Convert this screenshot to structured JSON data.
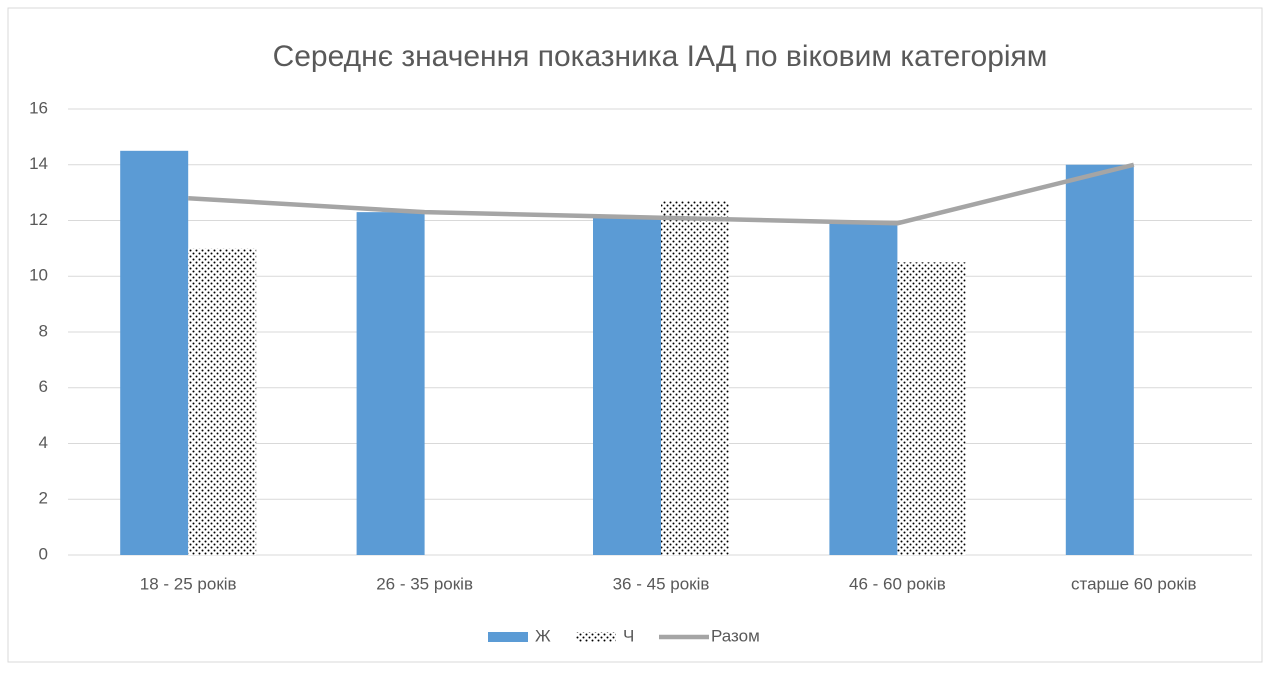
{
  "chart_data": {
    "type": "bar",
    "title": "Середнє значення показника ІАД по віковим категоріям",
    "categories": [
      "18 - 25 років",
      "26 - 35 років",
      "36 - 45 років",
      "46 - 60 років",
      "старше 60 років"
    ],
    "series": [
      {
        "name": "Ж",
        "color": "#5b9bd5",
        "values": [
          14.5,
          12.3,
          12.1,
          11.9,
          14.0
        ]
      },
      {
        "name": "Ч",
        "color": "#000000",
        "pattern": "dots",
        "values": [
          11.0,
          null,
          12.7,
          10.5,
          null
        ]
      },
      {
        "name": "Разом",
        "type": "line",
        "color": "#a5a5a5",
        "values": [
          12.8,
          12.3,
          12.1,
          11.9,
          14.0
        ]
      }
    ],
    "ylim": [
      0,
      16
    ],
    "yticks": [
      0,
      2,
      4,
      6,
      8,
      10,
      12,
      14,
      16
    ],
    "grid": true,
    "legend": "bottom"
  }
}
